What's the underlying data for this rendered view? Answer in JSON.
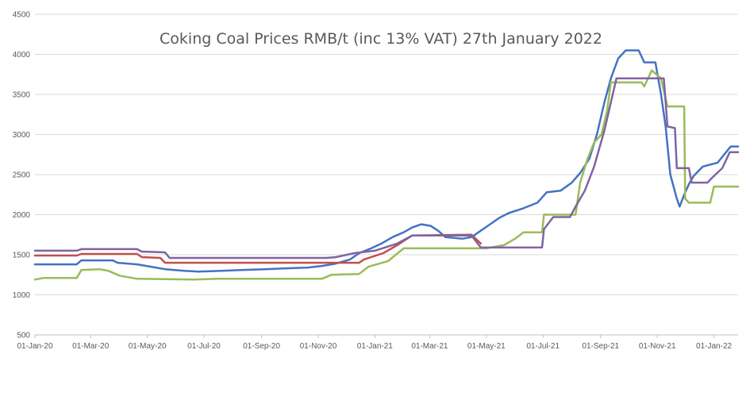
{
  "chart_data": {
    "type": "line",
    "title": "Coking Coal Prices RMB/t (inc 13% VAT) 27th January 2022",
    "xlabel": "",
    "ylabel": "",
    "ylim": [
      500,
      4500
    ],
    "xlim": [
      "2020-01-01",
      "2022-01-27"
    ],
    "yticks": [
      500,
      1000,
      1500,
      2000,
      2500,
      3000,
      3500,
      4000,
      4500
    ],
    "xticks": [
      {
        "date": "2020-01-01",
        "label": "01-Jan-20"
      },
      {
        "date": "2020-03-01",
        "label": "01-Mar-20"
      },
      {
        "date": "2020-05-01",
        "label": "01-May-20"
      },
      {
        "date": "2020-07-01",
        "label": "01-Jul-20"
      },
      {
        "date": "2020-09-01",
        "label": "01-Sep-20"
      },
      {
        "date": "2020-11-01",
        "label": "01-Nov-20"
      },
      {
        "date": "2021-01-01",
        "label": "01-Jan-21"
      },
      {
        "date": "2021-03-01",
        "label": "01-Mar-21"
      },
      {
        "date": "2021-05-01",
        "label": "01-May-21"
      },
      {
        "date": "2021-07-01",
        "label": "01-Jul-21"
      },
      {
        "date": "2021-09-01",
        "label": "01-Sep-21"
      },
      {
        "date": "2021-11-01",
        "label": "01-Nov-21"
      },
      {
        "date": "2022-01-01",
        "label": "01-Jan-22"
      }
    ],
    "grid": true,
    "legend": "none",
    "series": [
      {
        "color": "#4472c4",
        "points": [
          [
            "2020-01-01",
            1380
          ],
          [
            "2020-02-15",
            1380
          ],
          [
            "2020-02-20",
            1430
          ],
          [
            "2020-03-25",
            1430
          ],
          [
            "2020-03-30",
            1400
          ],
          [
            "2020-04-20",
            1380
          ],
          [
            "2020-05-05",
            1350
          ],
          [
            "2020-05-20",
            1320
          ],
          [
            "2020-06-10",
            1300
          ],
          [
            "2020-06-25",
            1290
          ],
          [
            "2020-07-20",
            1300
          ],
          [
            "2020-08-10",
            1310
          ],
          [
            "2020-09-05",
            1320
          ],
          [
            "2020-09-25",
            1330
          ],
          [
            "2020-10-20",
            1340
          ],
          [
            "2020-11-05",
            1360
          ],
          [
            "2020-11-20",
            1390
          ],
          [
            "2020-12-05",
            1440
          ],
          [
            "2020-12-15",
            1520
          ],
          [
            "2020-12-28",
            1580
          ],
          [
            "2021-01-08",
            1640
          ],
          [
            "2021-01-20",
            1720
          ],
          [
            "2021-02-01",
            1780
          ],
          [
            "2021-02-10",
            1840
          ],
          [
            "2021-02-20",
            1880
          ],
          [
            "2021-03-02",
            1860
          ],
          [
            "2021-03-10",
            1800
          ],
          [
            "2021-03-18",
            1720
          ],
          [
            "2021-04-05",
            1700
          ],
          [
            "2021-04-15",
            1720
          ],
          [
            "2021-04-25",
            1800
          ],
          [
            "2021-05-05",
            1880
          ],
          [
            "2021-05-15",
            1960
          ],
          [
            "2021-05-25",
            2020
          ],
          [
            "2021-06-10",
            2080
          ],
          [
            "2021-06-25",
            2150
          ],
          [
            "2021-07-05",
            2280
          ],
          [
            "2021-07-20",
            2300
          ],
          [
            "2021-08-01",
            2400
          ],
          [
            "2021-08-10",
            2520
          ],
          [
            "2021-08-20",
            2700
          ],
          [
            "2021-08-28",
            3000
          ],
          [
            "2021-09-05",
            3400
          ],
          [
            "2021-09-12",
            3700
          ],
          [
            "2021-09-20",
            3950
          ],
          [
            "2021-09-28",
            4050
          ],
          [
            "2021-10-12",
            4050
          ],
          [
            "2021-10-18",
            3900
          ],
          [
            "2021-10-30",
            3900
          ],
          [
            "2021-11-05",
            3500
          ],
          [
            "2021-11-10",
            3100
          ],
          [
            "2021-11-15",
            2500
          ],
          [
            "2021-11-22",
            2200
          ],
          [
            "2021-11-25",
            2100
          ],
          [
            "2021-11-30",
            2250
          ],
          [
            "2021-12-05",
            2380
          ],
          [
            "2021-12-10",
            2480
          ],
          [
            "2021-12-20",
            2600
          ],
          [
            "2022-01-05",
            2650
          ],
          [
            "2022-01-12",
            2750
          ],
          [
            "2022-01-19",
            2850
          ],
          [
            "2022-01-27",
            2850
          ]
        ]
      },
      {
        "color": "#c0504d",
        "points": [
          [
            "2020-01-01",
            1490
          ],
          [
            "2020-02-15",
            1490
          ],
          [
            "2020-02-20",
            1510
          ],
          [
            "2020-04-20",
            1510
          ],
          [
            "2020-04-25",
            1470
          ],
          [
            "2020-05-15",
            1460
          ],
          [
            "2020-05-20",
            1400
          ],
          [
            "2020-12-15",
            1400
          ],
          [
            "2020-12-20",
            1440
          ],
          [
            "2021-01-10",
            1520
          ],
          [
            "2021-01-25",
            1620
          ],
          [
            "2021-02-10",
            1740
          ],
          [
            "2021-04-15",
            1750
          ],
          [
            "2021-04-25",
            1640
          ]
        ]
      },
      {
        "color": "#9bbb59",
        "points": [
          [
            "2020-01-01",
            1190
          ],
          [
            "2020-01-10",
            1210
          ],
          [
            "2020-02-15",
            1210
          ],
          [
            "2020-02-20",
            1310
          ],
          [
            "2020-03-10",
            1320
          ],
          [
            "2020-03-20",
            1300
          ],
          [
            "2020-04-01",
            1240
          ],
          [
            "2020-04-20",
            1200
          ],
          [
            "2020-06-20",
            1190
          ],
          [
            "2020-07-15",
            1200
          ],
          [
            "2020-11-05",
            1200
          ],
          [
            "2020-11-15",
            1250
          ],
          [
            "2020-12-15",
            1260
          ],
          [
            "2020-12-25",
            1350
          ],
          [
            "2021-01-15",
            1420
          ],
          [
            "2021-02-01",
            1580
          ],
          [
            "2021-05-01",
            1580
          ],
          [
            "2021-05-20",
            1620
          ],
          [
            "2021-06-01",
            1700
          ],
          [
            "2021-06-10",
            1780
          ],
          [
            "2021-06-30",
            1780
          ],
          [
            "2021-07-02",
            2000
          ],
          [
            "2021-08-05",
            2000
          ],
          [
            "2021-08-10",
            2400
          ],
          [
            "2021-08-18",
            2700
          ],
          [
            "2021-08-25",
            2900
          ],
          [
            "2021-09-02",
            3000
          ],
          [
            "2021-09-08",
            3300
          ],
          [
            "2021-09-12",
            3650
          ],
          [
            "2021-10-15",
            3650
          ],
          [
            "2021-10-18",
            3600
          ],
          [
            "2021-10-26",
            3800
          ],
          [
            "2021-11-05",
            3700
          ],
          [
            "2021-11-12",
            3350
          ],
          [
            "2021-11-30",
            3350
          ],
          [
            "2021-12-01",
            2200
          ],
          [
            "2021-12-05",
            2150
          ],
          [
            "2021-12-28",
            2150
          ],
          [
            "2022-01-01",
            2350
          ],
          [
            "2022-01-27",
            2350
          ]
        ]
      },
      {
        "color": "#8064a2",
        "points": [
          [
            "2020-01-01",
            1550
          ],
          [
            "2020-02-15",
            1550
          ],
          [
            "2020-02-20",
            1570
          ],
          [
            "2020-04-20",
            1570
          ],
          [
            "2020-04-25",
            1540
          ],
          [
            "2020-05-20",
            1530
          ],
          [
            "2020-05-25",
            1460
          ],
          [
            "2020-11-10",
            1460
          ],
          [
            "2020-11-20",
            1470
          ],
          [
            "2020-12-10",
            1520
          ],
          [
            "2021-01-01",
            1550
          ],
          [
            "2021-01-25",
            1640
          ],
          [
            "2021-02-10",
            1740
          ],
          [
            "2021-04-15",
            1740
          ],
          [
            "2021-04-25",
            1590
          ],
          [
            "2021-06-30",
            1590
          ],
          [
            "2021-07-02",
            1820
          ],
          [
            "2021-07-12",
            1970
          ],
          [
            "2021-07-30",
            1970
          ],
          [
            "2021-08-05",
            2100
          ],
          [
            "2021-08-15",
            2300
          ],
          [
            "2021-08-25",
            2600
          ],
          [
            "2021-09-05",
            3050
          ],
          [
            "2021-09-12",
            3400
          ],
          [
            "2021-09-18",
            3700
          ],
          [
            "2021-11-08",
            3700
          ],
          [
            "2021-11-12",
            3100
          ],
          [
            "2021-11-20",
            3080
          ],
          [
            "2021-11-22",
            2580
          ],
          [
            "2021-12-05",
            2580
          ],
          [
            "2021-12-08",
            2400
          ],
          [
            "2021-12-25",
            2400
          ],
          [
            "2021-12-30",
            2460
          ],
          [
            "2022-01-10",
            2580
          ],
          [
            "2022-01-18",
            2780
          ],
          [
            "2022-01-27",
            2780
          ]
        ]
      }
    ]
  }
}
